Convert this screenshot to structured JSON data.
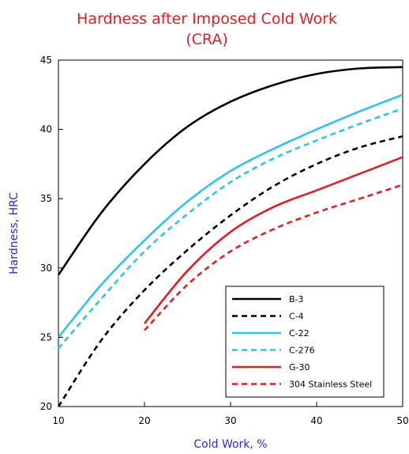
{
  "chart_data": {
    "type": "line",
    "title_lines": [
      "Hardness after Imposed Cold Work",
      "(CRA)"
    ],
    "xlabel": "Cold Work, %",
    "ylabel": "Hardness, HRC",
    "xlim": [
      10,
      50
    ],
    "ylim": [
      20,
      45
    ],
    "xticks": [
      10,
      20,
      30,
      40,
      50
    ],
    "yticks": [
      20,
      25,
      30,
      35,
      40,
      45
    ],
    "grid": false,
    "legend_position": "bottom-right",
    "colors": {
      "title": "#e02020",
      "axis_label": "#2a2ae0"
    },
    "series": [
      {
        "name": "B-3",
        "color": "#000000",
        "dash": "solid",
        "x": [
          10,
          15,
          20,
          25,
          30,
          35,
          40,
          45,
          50
        ],
        "y": [
          29.5,
          34.0,
          37.5,
          40.2,
          42.0,
          43.2,
          44.0,
          44.4,
          44.5
        ]
      },
      {
        "name": "C-4",
        "color": "#000000",
        "dash": "dashed",
        "x": [
          10,
          15,
          20,
          25,
          30,
          35,
          40,
          45,
          50
        ],
        "y": [
          20.0,
          24.8,
          28.4,
          31.3,
          33.8,
          35.9,
          37.5,
          38.7,
          39.5
        ]
      },
      {
        "name": "C-22",
        "color": "#2ec4f0",
        "dash": "solid",
        "x": [
          10,
          15,
          20,
          25,
          30,
          35,
          40,
          45,
          50
        ],
        "y": [
          25.0,
          28.8,
          32.0,
          34.8,
          37.0,
          38.6,
          40.0,
          41.3,
          42.5
        ]
      },
      {
        "name": "C-276",
        "color": "#2ec4f0",
        "dash": "dashed",
        "x": [
          10,
          15,
          20,
          25,
          30,
          35,
          40,
          45,
          50
        ],
        "y": [
          24.2,
          27.8,
          31.2,
          33.9,
          36.2,
          37.9,
          39.2,
          40.4,
          41.5
        ]
      },
      {
        "name": "G-30",
        "color": "#e02020",
        "dash": "solid",
        "x": [
          20,
          25,
          30,
          35,
          40,
          45,
          50
        ],
        "y": [
          26.0,
          29.8,
          32.6,
          34.4,
          35.6,
          36.8,
          38.0
        ]
      },
      {
        "name": "304 Stainless Steel",
        "color": "#e02020",
        "dash": "dashed",
        "x": [
          20,
          25,
          30,
          35,
          40,
          45,
          50
        ],
        "y": [
          25.5,
          28.8,
          31.2,
          32.8,
          34.0,
          35.0,
          36.0
        ]
      }
    ]
  }
}
